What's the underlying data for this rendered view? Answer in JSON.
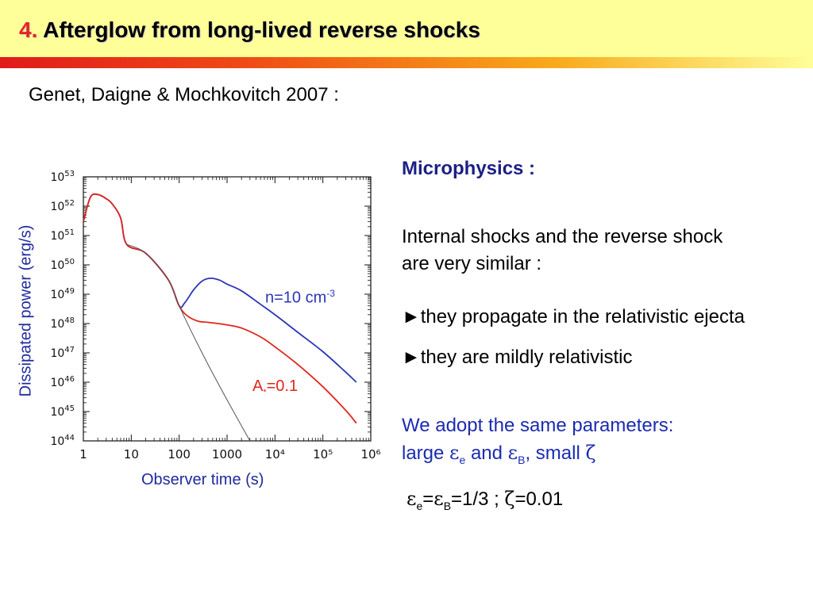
{
  "header": {
    "number": "4.",
    "title": "Afterglow from long-lived reverse shocks"
  },
  "citation": "Genet, Daigne & Mochkovitch 2007 :",
  "figure": {
    "ylabel": "Dissipated power (erg/s)",
    "xlabel": "Observer time (s)",
    "annot_n_prefix": "n=10 cm",
    "annot_n_exp": "-3",
    "annot_a_letter": "A",
    "annot_a_sub": "*",
    "annot_a_value": "=0.1"
  },
  "chart_data": {
    "type": "line",
    "xscale": "log",
    "yscale": "log",
    "xlim": [
      1,
      1000000
    ],
    "ylim": [
      1e+44,
      1e+53
    ],
    "x_ticks": [
      "1",
      "10",
      "100",
      "1000",
      "10⁴",
      "10⁵",
      "10⁶"
    ],
    "y_ticks": [
      {
        "base": "10",
        "exp": "53"
      },
      {
        "base": "10",
        "exp": "52"
      },
      {
        "base": "10",
        "exp": "51"
      },
      {
        "base": "10",
        "exp": "50"
      },
      {
        "base": "10",
        "exp": "49"
      },
      {
        "base": "10",
        "exp": "48"
      },
      {
        "base": "10",
        "exp": "47"
      },
      {
        "base": "10",
        "exp": "46"
      },
      {
        "base": "10",
        "exp": "45"
      },
      {
        "base": "10",
        "exp": "44"
      }
    ],
    "series": [
      {
        "color": "#2a36b8",
        "points": [
          [
            1,
            3e+51
          ],
          [
            1.4,
            2e+52
          ],
          [
            2,
            2.5e+52
          ],
          [
            3,
            1.8e+52
          ],
          [
            4,
            1.2e+52
          ],
          [
            6,
            4e+51
          ],
          [
            8,
            5e+50
          ],
          [
            20,
            2.5e+50
          ],
          [
            60,
            3e+49
          ],
          [
            100,
            4e+48
          ],
          [
            130,
            5e+48
          ],
          [
            200,
            1.4e+49
          ],
          [
            300,
            2.8e+49
          ],
          [
            450,
            3.5e+49
          ],
          [
            700,
            3e+49
          ],
          [
            1000,
            2.2e+49
          ],
          [
            2000,
            1.3e+49
          ],
          [
            5000,
            4.5e+48
          ],
          [
            10000,
            2e+48
          ],
          [
            30000,
            5e+47
          ],
          [
            100000,
            1.1e+47
          ],
          [
            300000,
            2.2e+46
          ],
          [
            500000,
            1e+46
          ]
        ]
      },
      {
        "color": "#e0261e",
        "points": [
          [
            1,
            3e+51
          ],
          [
            1.4,
            2e+52
          ],
          [
            2,
            2.5e+52
          ],
          [
            3,
            1.8e+52
          ],
          [
            4,
            1.2e+52
          ],
          [
            6,
            4e+51
          ],
          [
            8,
            5e+50
          ],
          [
            20,
            2.5e+50
          ],
          [
            60,
            3e+49
          ],
          [
            100,
            4e+48
          ],
          [
            150,
            1.8e+48
          ],
          [
            250,
            1.2e+48
          ],
          [
            400,
            1.1e+48
          ],
          [
            1000,
            9e+47
          ],
          [
            2000,
            7e+47
          ],
          [
            5000,
            3.5e+47
          ],
          [
            10000,
            1.6e+47
          ],
          [
            30000,
            4e+46
          ],
          [
            100000,
            7e+45
          ],
          [
            300000,
            1.1e+45
          ],
          [
            500000,
            4e+44
          ]
        ]
      },
      {
        "color": "#555555",
        "points": [
          [
            8,
            5e+50
          ],
          [
            20,
            2.5e+50
          ],
          [
            60,
            3e+49
          ],
          [
            100,
            4e+48
          ],
          [
            300,
            1e+47
          ],
          [
            1000,
            2.5e+45
          ],
          [
            3000,
            1e+44
          ]
        ]
      }
    ]
  },
  "microphysics": {
    "heading": "Microphysics :",
    "intro_line1": "Internal shocks and the reverse shock",
    "intro_line2": "are very similar :",
    "bullet_marker": "►",
    "bullet1": "they propagate in the relativistic ejecta",
    "bullet2": "they are mildly relativistic",
    "adopt_line1": "We adopt the same parameters:",
    "adopt_word_large": "large ",
    "adopt_word_and": " and ",
    "adopt_word_small": ", small ",
    "sym_epsilon": "ε",
    "sym_zeta": "ζ",
    "sub_e": "e",
    "sub_B": "B",
    "eq_equals": "=",
    "eq_value1": "=1/3 ; ",
    "eq_value2": "=0.01"
  }
}
